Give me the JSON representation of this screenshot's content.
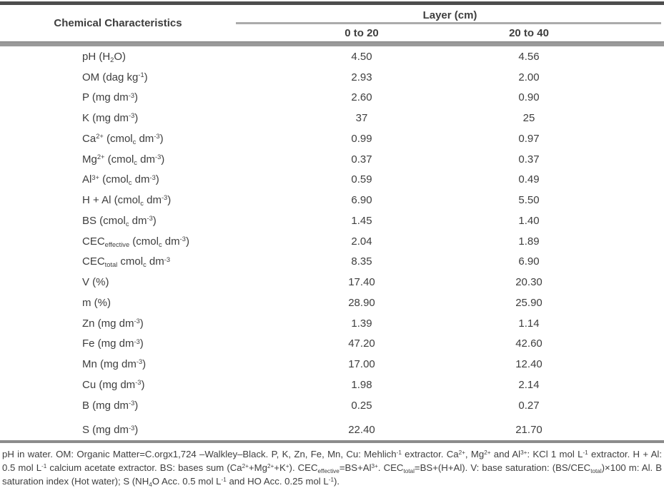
{
  "colors": {
    "text": "#3e3e3e",
    "rule_dark": "#4d4d4d",
    "rule_medium": "#9a9a9a",
    "rule_light": "#ababab",
    "background": "#ffffff"
  },
  "table": {
    "header": {
      "col1": "Chemical Characteristics",
      "layer_group": "Layer (cm)",
      "layer_cols": [
        "0 to 20",
        "20 to 40"
      ]
    },
    "rows": [
      {
        "label": "pH (H~2~O)",
        "v1": "4.50",
        "v2": "4.56"
      },
      {
        "label": "OM (dag kg^-1^)",
        "v1": "2.93",
        "v2": "2.00"
      },
      {
        "label": "P (mg dm^-3^)",
        "v1": "2.60",
        "v2": "0.90"
      },
      {
        "label": "K (mg dm^-3^)",
        "v1": "37",
        "v2": "25"
      },
      {
        "label": "Ca^2+^ (cmol~c~ dm^-3^)",
        "v1": "0.99",
        "v2": "0.97"
      },
      {
        "label": "Mg^2+^ (cmol~c~ dm^-3^)",
        "v1": "0.37",
        "v2": "0.37"
      },
      {
        "label": "Al^3+^ (cmol~c~ dm^-3^)",
        "v1": "0.59",
        "v2": "0.49"
      },
      {
        "label": "H + Al (cmol~c~ dm^-3^)",
        "v1": "6.90",
        "v2": "5.50"
      },
      {
        "label": "BS (cmol~c~ dm^-3^)",
        "v1": "1.45",
        "v2": "1.40"
      },
      {
        "label": "CEC~effective~ (cmol~c~ dm^-3^)",
        "v1": "2.04",
        "v2": "1.89"
      },
      {
        "label": "CEC~total~ cmol~c~ dm^-3^",
        "v1": "8.35",
        "v2": "6.90"
      },
      {
        "label": "V (%)",
        "v1": "17.40",
        "v2": "20.30"
      },
      {
        "label": "m (%)",
        "v1": "28.90",
        "v2": "25.90"
      },
      {
        "label": "Zn (mg dm^-3^)",
        "v1": "1.39",
        "v2": "1.14"
      },
      {
        "label": "Fe (mg dm^-3^)",
        "v1": "47.20",
        "v2": "42.60"
      },
      {
        "label": "Mn (mg dm^-3^)",
        "v1": "17.00",
        "v2": "12.40"
      },
      {
        "label": "Cu (mg dm^-3^)",
        "v1": "1.98",
        "v2": "2.14"
      },
      {
        "label": "B (mg dm^-3^)",
        "v1": "0.25",
        "v2": "0.27"
      },
      {
        "label": "S (mg dm^-3^)",
        "v1": "22.40",
        "v2": "21.70",
        "gap_before": true
      }
    ],
    "footnote": "pH in water. OM: Organic Matter=C.orgx1,724 –Walkley–Black. P, K, Zn, Fe, Mn, Cu: Mehlich^-1^ extractor. Ca^2+^, Mg^2+^ and Al^3+^: KCl 1 mol L^-1^ extractor. H + Al: 0.5 mol L^-1^ calcium acetate extractor. BS: bases sum (Ca^2+^+Mg^2+^+K^+^). CEC~effective~=BS+Al^3+^. CEC~total~=BS+(H+Al). V: base saturation: (BS/CEC~total~)×100 m: Al. B saturation index (Hot water); S (NH~4~O Acc. 0.5 mol L^-1^ and HO Acc. 0.25 mol L^-1^)."
  }
}
